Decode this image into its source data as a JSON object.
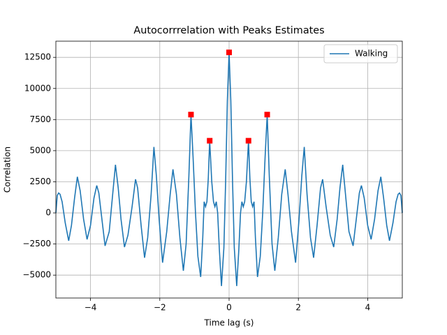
{
  "chart_data": {
    "type": "line",
    "title": "Autocorrrelation with Peaks Estimates",
    "xlabel": "Time lag (s)",
    "ylabel": "Correlation",
    "x": [
      -5.0,
      -4.96,
      -4.92,
      -4.88,
      -4.82,
      -4.73,
      -4.63,
      -4.55,
      -4.46,
      -4.38,
      -4.3,
      -4.2,
      -4.1,
      -4.0,
      -3.9,
      -3.82,
      -3.76,
      -3.68,
      -3.58,
      -3.46,
      -3.36,
      -3.28,
      -3.2,
      -3.12,
      -3.02,
      -2.92,
      -2.8,
      -2.7,
      -2.64,
      -2.54,
      -2.44,
      -2.35,
      -2.25,
      -2.17,
      -2.1,
      -2.02,
      -1.92,
      -1.8,
      -1.7,
      -1.62,
      -1.52,
      -1.42,
      -1.32,
      -1.24,
      -1.16,
      -1.1,
      -1.04,
      -0.97,
      -0.9,
      -0.82,
      -0.76,
      -0.72,
      -0.68,
      -0.64,
      -0.6,
      -0.56,
      -0.5,
      -0.45,
      -0.41,
      -0.37,
      -0.33,
      -0.28,
      -0.22,
      -0.15,
      -0.1,
      -0.05,
      0,
      0.05,
      0.1,
      0.15,
      0.22,
      0.28,
      0.33,
      0.37,
      0.41,
      0.45,
      0.5,
      0.56,
      0.6,
      0.64,
      0.68,
      0.72,
      0.76,
      0.82,
      0.9,
      0.97,
      1.04,
      1.1,
      1.16,
      1.24,
      1.32,
      1.42,
      1.52,
      1.62,
      1.7,
      1.8,
      1.92,
      2.02,
      2.1,
      2.17,
      2.25,
      2.35,
      2.44,
      2.54,
      2.64,
      2.7,
      2.8,
      2.92,
      3.02,
      3.12,
      3.2,
      3.28,
      3.36,
      3.46,
      3.58,
      3.68,
      3.76,
      3.82,
      3.9,
      4.0,
      4.1,
      4.2,
      4.3,
      4.38,
      4.46,
      4.55,
      4.63,
      4.73,
      4.82,
      4.88,
      4.92,
      4.96,
      5.0
    ],
    "series": [
      {
        "name": "Walking",
        "color": "#1f77b4",
        "values": [
          0,
          1400,
          1600,
          1500,
          900,
          -800,
          -2240,
          -1000,
          1200,
          2900,
          1800,
          -500,
          -2130,
          -1000,
          1200,
          2200,
          1600,
          -300,
          -2650,
          -1500,
          1500,
          3870,
          2000,
          -500,
          -2750,
          -1800,
          500,
          2700,
          2000,
          -1000,
          -3600,
          -2000,
          1500,
          5300,
          3000,
          -500,
          -4000,
          -1500,
          1500,
          3500,
          1500,
          -2000,
          -4650,
          -2500,
          3000,
          7900,
          4500,
          0,
          -3500,
          -5150,
          -2000,
          900,
          500,
          900,
          2800,
          5800,
          2500,
          900,
          500,
          900,
          0,
          -3000,
          -5880,
          -2800,
          2500,
          9000,
          12900,
          9000,
          2500,
          -2800,
          -5880,
          -3000,
          0,
          900,
          500,
          900,
          2500,
          5800,
          2800,
          900,
          500,
          900,
          -2000,
          -5150,
          -3500,
          0,
          4500,
          7900,
          3000,
          -2500,
          -4650,
          -2000,
          1500,
          3500,
          1500,
          -1500,
          -4000,
          -500,
          3000,
          5300,
          1500,
          -2000,
          -3600,
          -1000,
          2000,
          2700,
          500,
          -1800,
          -2750,
          -500,
          2000,
          3870,
          1500,
          -1500,
          -2650,
          -300,
          1600,
          2200,
          1200,
          -1000,
          -2130,
          -500,
          1800,
          2900,
          1200,
          -1000,
          -2240,
          -800,
          900,
          1500,
          1600,
          1400,
          0
        ]
      }
    ],
    "peaks": {
      "color": "#ff0000",
      "x": [
        -1.1,
        -0.56,
        0,
        0.56,
        1.1
      ],
      "values": [
        7900,
        5800,
        12900,
        5800,
        7900
      ]
    },
    "xlim": [
      -5,
      5
    ],
    "ylim": [
      -6840,
      13800
    ],
    "xticks": [
      {
        "value": -4,
        "label": "−4"
      },
      {
        "value": -2,
        "label": "−2"
      },
      0,
      2,
      4
    ],
    "yticks": [
      {
        "value": -5000,
        "label": "−5000"
      },
      {
        "value": -2500,
        "label": "−2500"
      },
      0,
      2500,
      5000,
      7500,
      10000,
      12500
    ],
    "grid": true,
    "legend": "upper right"
  }
}
